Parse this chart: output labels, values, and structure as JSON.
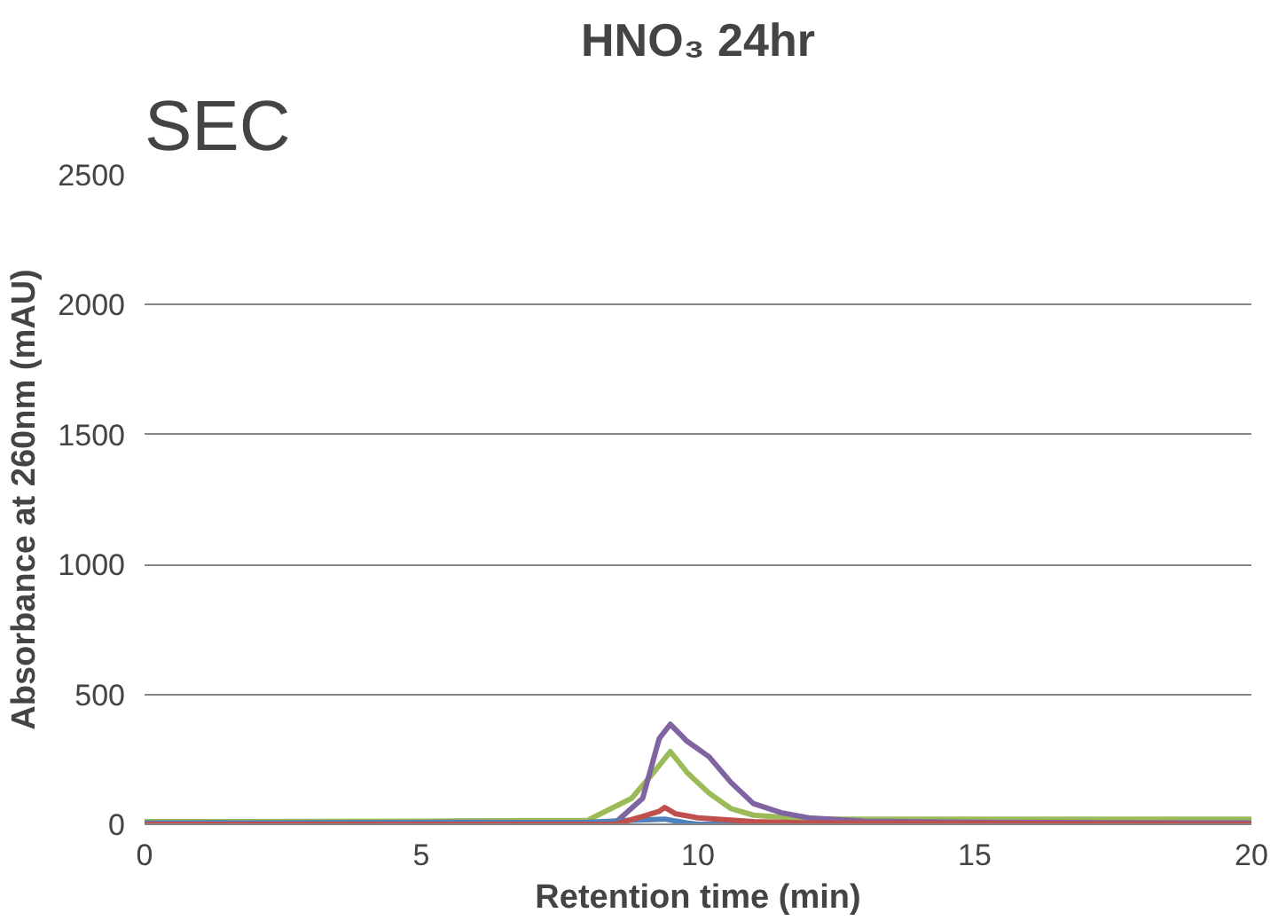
{
  "chart_data": {
    "type": "line",
    "title": "HNO₃ 24hr",
    "xlabel": "Retention time (min)",
    "ylabel": "Absorbance at 260nm (mAU)",
    "annotations": [
      "SEC"
    ],
    "xlim": [
      0,
      20
    ],
    "ylim": [
      0,
      2500
    ],
    "xticks": [
      0,
      5,
      10,
      15,
      20
    ],
    "yticks": [
      0,
      500,
      1000,
      1500,
      2000,
      2500
    ],
    "grid": "y",
    "marker": "none",
    "line_style": "solid",
    "series": [
      {
        "color": "#9bbb59",
        "x": [
          0,
          5,
          8,
          8.8,
          9.2,
          9.5,
          9.8,
          10.2,
          10.6,
          11,
          12,
          15,
          20
        ],
        "values": [
          10,
          12,
          15,
          100,
          200,
          280,
          200,
          120,
          60,
          35,
          20,
          20,
          20
        ]
      },
      {
        "color": "#8064a2",
        "x": [
          0,
          6,
          8.5,
          9,
          9.3,
          9.5,
          9.8,
          10.2,
          10.6,
          11,
          11.5,
          12,
          13,
          15,
          20
        ],
        "values": [
          0,
          8,
          5,
          100,
          330,
          385,
          320,
          260,
          160,
          80,
          45,
          25,
          12,
          8,
          5
        ]
      },
      {
        "color": "#4f81bd",
        "x": [
          0,
          8,
          8.8,
          9.4,
          9.8,
          10,
          20
        ],
        "values": [
          5,
          8,
          15,
          20,
          5,
          0,
          0
        ]
      },
      {
        "color": "#c0504d",
        "x": [
          0,
          8.5,
          9,
          9.3,
          9.4,
          9.6,
          10,
          11,
          12,
          20
        ],
        "values": [
          0,
          0,
          30,
          50,
          65,
          40,
          25,
          10,
          5,
          0
        ]
      }
    ]
  }
}
